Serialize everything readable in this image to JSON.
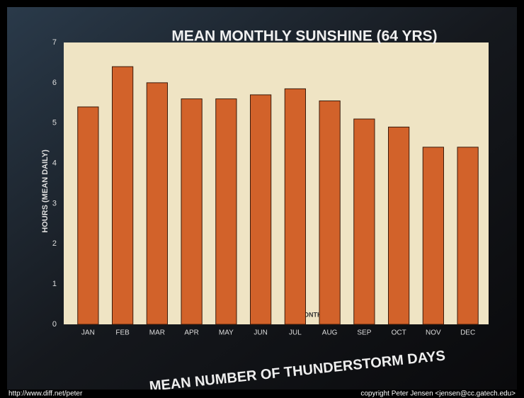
{
  "chart_data": {
    "type": "bar",
    "title": "MEAN MONTHLY SUNSHINE (64 YRS)",
    "x_label": "MONTH",
    "y_label": "HOURS (MEAN DAILY)",
    "categories": [
      "JAN",
      "FEB",
      "MAR",
      "APR",
      "MAY",
      "JUN",
      "JUL",
      "AUG",
      "SEP",
      "OCT",
      "NOV",
      "DEC"
    ],
    "values": [
      5.4,
      6.4,
      6.0,
      5.6,
      5.6,
      5.7,
      5.85,
      5.55,
      5.1,
      4.9,
      4.4,
      4.4
    ],
    "color": "#d2622a",
    "ylim": [
      0,
      7
    ],
    "yticks": [
      0,
      1,
      2,
      3,
      4,
      5,
      6,
      7
    ],
    "grid": false
  },
  "next_title": "MEAN NUMBER OF THUNDERSTORM DAYS",
  "footer": {
    "left": "http://www.diff.net/peter",
    "right": "copyright Peter Jensen <jensen@cc.gatech.edu>"
  }
}
